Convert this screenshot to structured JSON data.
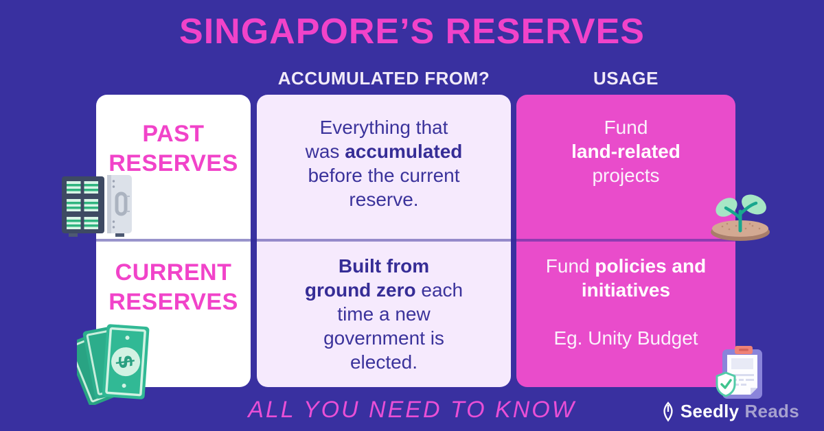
{
  "page": {
    "title": "SINGAPORE’S RESERVES",
    "tagline": "ALL YOU NEED TO KNOW"
  },
  "table": {
    "column_headers": [
      {
        "label": "ACCUMULATED FROM?"
      },
      {
        "label": "USAGE"
      }
    ],
    "rows": [
      {
        "label": "PAST\nRESERVES",
        "accumulated_from": "Everything that\nwas **accumulated**\nbefore the current\nreserve.",
        "usage": "Fund\n**land-related**\nprojects"
      },
      {
        "label": "CURRENT\nRESERVES",
        "accumulated_from": "**Built from**\n**ground zero** each\ntime a new\ngovernment is\nelected.",
        "usage": "Fund **policies and**\n**initiatives**\n\nEg. Unity Budget"
      }
    ]
  },
  "icons": {
    "past_reserves": "safe-icon",
    "current_reserves": "money-icon",
    "land_projects": "sprout-icon",
    "policies": "clipboard-shield-icon",
    "brand": "seedly-leaf-icon"
  },
  "branding": {
    "name": "Seedly",
    "suffix": "Reads"
  },
  "colors": {
    "background": "#3930A0",
    "accent_pink": "#F143C9",
    "card_pink": "#E94CCB",
    "card_lavender": "#F6EAFD",
    "card_white": "#FFFFFF",
    "body_indigo": "#3B339B",
    "tagline_pink": "#E94FD6"
  }
}
